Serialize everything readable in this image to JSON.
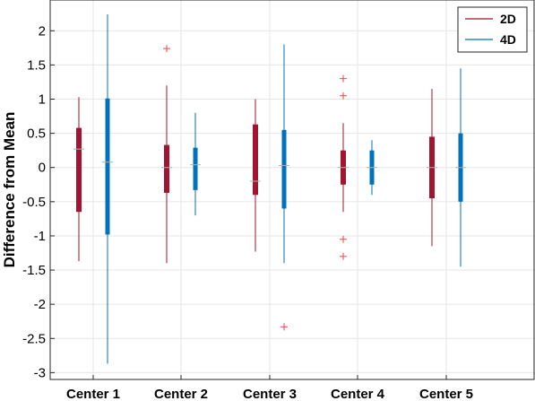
{
  "chart_data": {
    "type": "boxplot",
    "ylabel": "Difference from Mean",
    "xlabel": "",
    "ylim": [
      -3.1,
      2.45
    ],
    "yticks": [
      2,
      1.5,
      1,
      0.5,
      0,
      -0.5,
      -1,
      -1.5,
      -2,
      -2.5,
      -3
    ],
    "ytick_labels": [
      "2",
      "1.5",
      "1",
      "0.5",
      "0",
      "-0.5",
      "-1",
      "-1.5",
      "-2",
      "-2.5",
      "-3"
    ],
    "grid": true,
    "legend_position": "top-right",
    "categories": [
      "Center 1",
      "Center 2",
      "Center 3",
      "Center 4",
      "Center 5"
    ],
    "series": [
      {
        "name": "2D",
        "color": "#A2142F",
        "boxes": [
          {
            "whisker_low": -1.37,
            "q1": -0.65,
            "median": 0.27,
            "q3": 0.58,
            "whisker_high": 1.03,
            "outliers": []
          },
          {
            "whisker_low": -1.4,
            "q1": -0.37,
            "median": 0.0,
            "q3": 0.33,
            "whisker_high": 1.2,
            "outliers": [
              1.74
            ]
          },
          {
            "whisker_low": -1.23,
            "q1": -0.4,
            "median": -0.2,
            "q3": 0.63,
            "whisker_high": 1.0,
            "outliers": []
          },
          {
            "whisker_low": -0.65,
            "q1": -0.25,
            "median": 0.0,
            "q3": 0.25,
            "whisker_high": 0.65,
            "outliers": [
              1.3,
              1.05,
              -1.05,
              -1.3
            ]
          },
          {
            "whisker_low": -1.15,
            "q1": -0.45,
            "median": 0.0,
            "q3": 0.45,
            "whisker_high": 1.15,
            "outliers": []
          }
        ]
      },
      {
        "name": "4D",
        "color": "#0072BD",
        "boxes": [
          {
            "whisker_low": -2.87,
            "q1": -0.98,
            "median": 0.08,
            "q3": 1.01,
            "whisker_high": 2.24,
            "outliers": []
          },
          {
            "whisker_low": -0.7,
            "q1": -0.33,
            "median": 0.04,
            "q3": 0.29,
            "whisker_high": 0.8,
            "outliers": []
          },
          {
            "whisker_low": -1.4,
            "q1": -0.6,
            "median": 0.03,
            "q3": 0.55,
            "whisker_high": 1.8,
            "outliers": [
              -2.33
            ]
          },
          {
            "whisker_low": -0.4,
            "q1": -0.25,
            "median": 0.0,
            "q3": 0.25,
            "whisker_high": 0.4,
            "outliers": []
          },
          {
            "whisker_low": -1.45,
            "q1": -0.5,
            "median": 0.0,
            "q3": 0.5,
            "whisker_high": 1.45,
            "outliers": []
          }
        ]
      }
    ]
  }
}
